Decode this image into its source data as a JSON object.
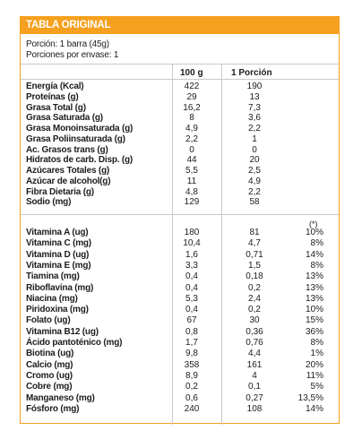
{
  "table": {
    "title": "TABLA ORIGINAL",
    "portion": "Porción: 1 barra (45g)",
    "portions_per_pack": "Porciones por envase: 1",
    "col_100g": "100 g",
    "col_portion": "1 Porción",
    "vd_note": "(*)"
  },
  "nutrients": [
    {
      "name": "Energía (Kcal)",
      "per100": "422",
      "portion": "190"
    },
    {
      "name": "Proteínas (g)",
      "per100": "29",
      "portion": "13"
    },
    {
      "name": "Grasa Total (g)",
      "per100": "16,2",
      "portion": "7,3"
    },
    {
      "name": "Grasa Saturada (g)",
      "per100": "8",
      "portion": "3,6"
    },
    {
      "name": "Grasa Monoinsaturada (g)",
      "per100": "4,9",
      "portion": "2,2"
    },
    {
      "name": "Grasa Poliinsaturada (g)",
      "per100": "2,2",
      "portion": "1"
    },
    {
      "name": "Ac. Grasos trans (g)",
      "per100": "0",
      "portion": "0"
    },
    {
      "name": "Hidratos de carb. Disp. (g)",
      "per100": "44",
      "portion": "20"
    },
    {
      "name": "Azúcares Totales (g)",
      "per100": "5,5",
      "portion": "2,5"
    },
    {
      "name": "Azúcar de alcohol(g)",
      "per100": "11",
      "portion": "4,9"
    },
    {
      "name": "Fibra Dietaria (g)",
      "per100": "4,8",
      "portion": "2,2"
    },
    {
      "name": "Sodio (mg)",
      "per100": "129",
      "portion": "58"
    }
  ],
  "micronutrients": [
    {
      "name": "Vitamina A (ug)",
      "per100": "180",
      "portion": "81",
      "vd": "10%"
    },
    {
      "name": "Vitamina C (mg)",
      "per100": "10,4",
      "portion": "4,7",
      "vd": "8%"
    },
    {
      "name": "Vitamina D (ug)",
      "per100": "1,6",
      "portion": "0,71",
      "vd": "14%"
    },
    {
      "name": "Vitamina E (mg)",
      "per100": "3,3",
      "portion": "1,5",
      "vd": "8%"
    },
    {
      "name": "Tiamina (mg)",
      "per100": "0,4",
      "portion": "0,18",
      "vd": "13%"
    },
    {
      "name": "Riboflavina (mg)",
      "per100": "0,4",
      "portion": "0,2",
      "vd": "13%"
    },
    {
      "name": "Niacina (mg)",
      "per100": "5,3",
      "portion": "2,4",
      "vd": "13%"
    },
    {
      "name": "Piridoxina (mg)",
      "per100": "0,4",
      "portion": "0,2",
      "vd": "10%"
    },
    {
      "name": "Folato (ug)",
      "per100": "67",
      "portion": "30",
      "vd": "15%"
    },
    {
      "name": "Vitamina B12 (ug)",
      "per100": "0,8",
      "portion": "0,36",
      "vd": "36%"
    },
    {
      "name": "Ácido pantoténico (mg)",
      "per100": "1,7",
      "portion": "0,76",
      "vd": "8%"
    },
    {
      "name": "Biotina (ug)",
      "per100": "9,8",
      "portion": "4,4",
      "vd": "1%"
    },
    {
      "name": "Calcio (mg)",
      "per100": "358",
      "portion": "161",
      "vd": "20%"
    },
    {
      "name": "Cromo (ug)",
      "per100": "8,9",
      "portion": "4",
      "vd": "11%"
    },
    {
      "name": "Cobre (mg)",
      "per100": "0,2",
      "portion": "0,1",
      "vd": "5%"
    },
    {
      "name": "Manganeso (mg)",
      "per100": "0,6",
      "portion": "0,27",
      "vd": "13,5%"
    },
    {
      "name": "Fósforo (mg)",
      "per100": "240",
      "portion": "108",
      "vd": "14%"
    }
  ]
}
